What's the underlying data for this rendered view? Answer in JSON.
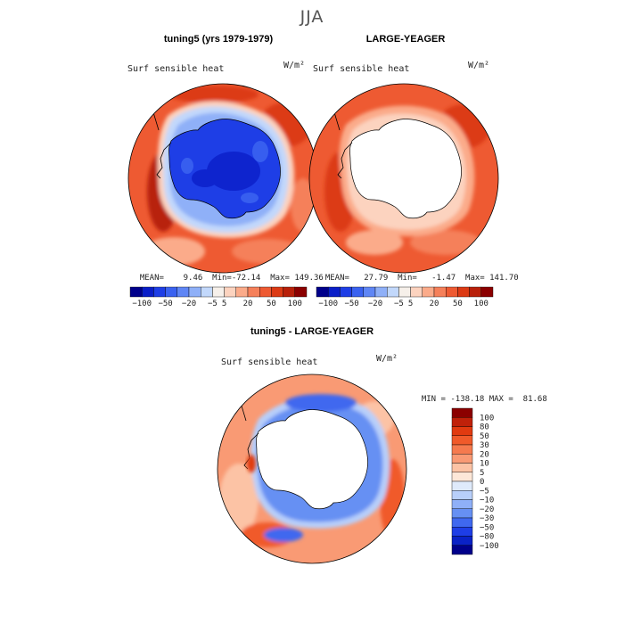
{
  "title": "JJA",
  "panels": [
    {
      "id": "p1",
      "title": "tuning5 (yrs 1979-1979)",
      "variable": "Surf sensible heat",
      "units": "W/m²",
      "stats": {
        "mean_label": "MEAN=",
        "mean": "9.46",
        "min_label": "Min=",
        "min": "-72.14",
        "max_label": "Max=",
        "max": "149.36"
      }
    },
    {
      "id": "p2",
      "title": "LARGE-YEAGER",
      "variable": "Surf sensible heat",
      "units": "W/m²",
      "stats": {
        "mean_label": "MEAN=",
        "mean": "27.79",
        "min_label": "Min=",
        "min": "-1.47",
        "max_label": "Max=",
        "max": "141.70"
      }
    },
    {
      "id": "p3",
      "title": "tuning5 - LARGE-YEAGER",
      "variable": "Surf sensible heat",
      "units": "W/m²",
      "stats": {
        "min_label": "MIN =",
        "min": "-138.18",
        "max_label": "MAX =",
        "max": "81.68"
      }
    }
  ],
  "colorbar_top": {
    "colors": [
      "#00008b",
      "#0a1ec8",
      "#1e3ee6",
      "#3a62f0",
      "#5f86f5",
      "#8fb0f8",
      "#c2d8fb",
      "#f6f0ea",
      "#fcd3bf",
      "#fbab8a",
      "#f5805a",
      "#ee5a32",
      "#dc3a14",
      "#b8200a",
      "#8b0000"
    ],
    "tick_labels": [
      "-100",
      "-50",
      "-20",
      "-5",
      "5",
      "20",
      "50",
      "100"
    ]
  },
  "colorbar_diff": {
    "colors": [
      "#8b0000",
      "#c0210a",
      "#e13a10",
      "#f05a2a",
      "#f57a4e",
      "#f99a74",
      "#fcc3a5",
      "#fde7d8",
      "#dfeafb",
      "#b8cffa",
      "#8fb0f8",
      "#6690f3",
      "#3f68ef",
      "#1e3ee6",
      "#0a22c6",
      "#00008b"
    ],
    "tick_labels": [
      "100",
      "80",
      "50",
      "30",
      "20",
      "10",
      "5",
      "0",
      "-5",
      "-10",
      "-20",
      "-30",
      "-50",
      "-80",
      "-100"
    ]
  }
}
